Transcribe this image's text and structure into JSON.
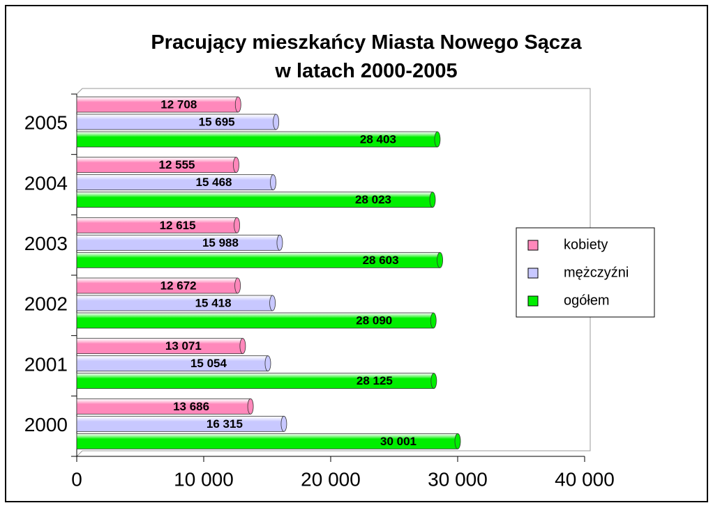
{
  "chart_data": {
    "type": "bar",
    "orientation": "horizontal",
    "title": [
      "Pracujący mieszkańcy Miasta Nowego Sącza",
      "w latach 2000-2005"
    ],
    "categories": [
      "2000",
      "2001",
      "2002",
      "2003",
      "2004",
      "2005"
    ],
    "series": [
      {
        "name": "kobiety",
        "color": "#ff88bb",
        "values": [
          13686,
          13071,
          12672,
          12615,
          12555,
          12708
        ],
        "value_labels": [
          "13 686",
          "13 071",
          "12 672",
          "12 615",
          "12 555",
          "12 708"
        ]
      },
      {
        "name": "mężczyźni",
        "color": "#c8c8ff",
        "values": [
          16315,
          15054,
          15418,
          15988,
          15468,
          15695
        ],
        "value_labels": [
          "16 315",
          "15 054",
          "15 418",
          "15 988",
          "15 468",
          "15 695"
        ]
      },
      {
        "name": "ogółem",
        "color": "#00ee00",
        "values": [
          30001,
          28125,
          28090,
          28603,
          28023,
          28403
        ],
        "value_labels": [
          "30 001",
          "28 125",
          "28 090",
          "28 603",
          "28 023",
          "28 403"
        ]
      }
    ],
    "xlim": [
      0,
      40000
    ],
    "xticks": [
      0,
      {
        "value": 10000,
        "label": "10 000"
      },
      {
        "value": 20000,
        "label": "20 000"
      },
      {
        "value": 30000,
        "label": "30 000"
      },
      {
        "value": 40000,
        "label": "40 000"
      }
    ],
    "legend": "right"
  }
}
